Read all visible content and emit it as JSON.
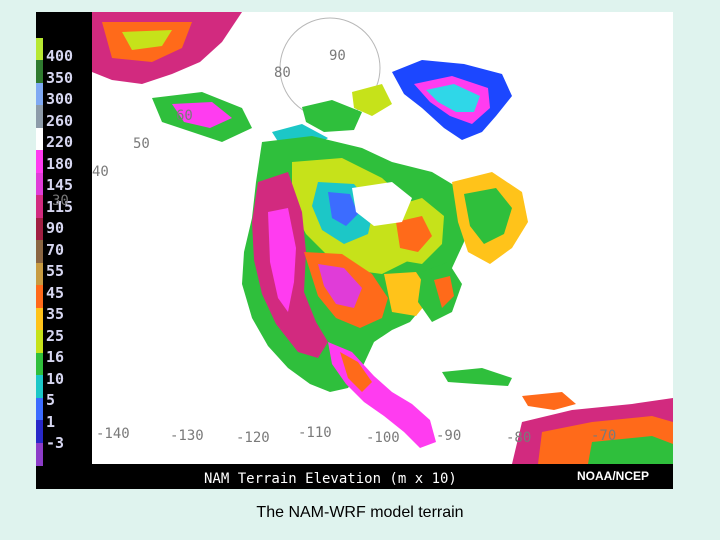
{
  "map": {
    "title": "NAM Terrain Elevation (m x 10)",
    "credit": "NOAA/NCEP",
    "legend_values": [
      "400",
      "350",
      "300",
      "260",
      "220",
      "180",
      "145",
      "115",
      "90",
      "70",
      "55",
      "45",
      "35",
      "25",
      "16",
      "10",
      "5",
      "1",
      "-3"
    ],
    "legend_colors": [
      "#b7e832",
      "#2f7a2f",
      "#7fa9f3",
      "#8d9ba9",
      "#ffffff",
      "#ff3cf0",
      "#e03cd8",
      "#d22a7f",
      "#a01f41",
      "#8a6541",
      "#c79b41",
      "#ff6a1a",
      "#ffc31a",
      "#c6e21a",
      "#2fbf3c",
      "#1cc7c7",
      "#3c6cff",
      "#2828c8",
      "#8c3cc8"
    ],
    "latitude_labels": [
      "90",
      "80",
      "60",
      "50",
      "40",
      "30"
    ],
    "longitude_labels": [
      "-140",
      "-130",
      "-120",
      "-110",
      "-100",
      "-90",
      "-80",
      "-70"
    ]
  },
  "caption": "The NAM-WRF model terrain"
}
